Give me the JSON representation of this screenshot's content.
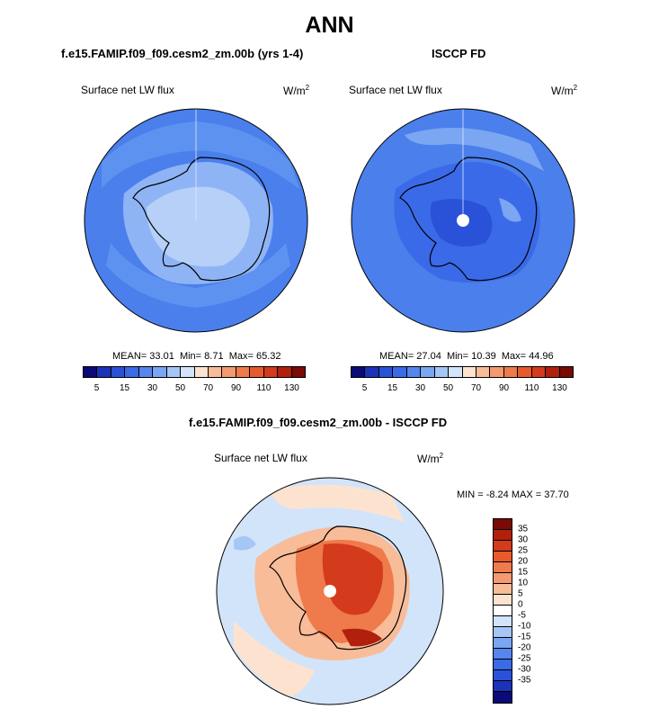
{
  "title": "ANN",
  "panels": {
    "model": {
      "case_title": "f.e15.FAMIP.f09_f09.cesm2_zm.00b (yrs 1-4)",
      "variable": "Surface net LW flux",
      "units": "W/m",
      "units_exp": "2",
      "mean_label": "MEAN=",
      "mean": "33.01",
      "min_label": "Min=",
      "min": "8.71",
      "max_label": "Max=",
      "max": "65.32"
    },
    "obs": {
      "case_title": "ISCCP FD",
      "variable": "Surface net LW flux",
      "units": "W/m",
      "units_exp": "2",
      "mean_label": "MEAN=",
      "mean": "27.04",
      "min_label": "Min=",
      "min": "10.39",
      "max_label": "Max=",
      "max": "44.96"
    },
    "diff": {
      "case_title": "f.e15.FAMIP.f09_f09.cesm2_zm.00b - ISCCP FD",
      "variable": "Surface net LW flux",
      "units": "W/m",
      "units_exp": "2",
      "minmax_text": "MIN = -8.24 MAX = 37.70"
    }
  },
  "colorbar_abs": {
    "colors": [
      "#0a0a78",
      "#1a33b8",
      "#2a52d8",
      "#3a6ae8",
      "#5585ee",
      "#7aa6f2",
      "#a6c6f6",
      "#d2e4fa",
      "#fde3cf",
      "#f8bc98",
      "#f39a70",
      "#ef7a4c",
      "#e85a2c",
      "#d43a1c",
      "#b0200c",
      "#7a0a04"
    ],
    "ticks": [
      "5",
      "15",
      "30",
      "50",
      "70",
      "90",
      "110",
      "130"
    ]
  },
  "colorbar_diff": {
    "colors": [
      "#7a0a04",
      "#b0200c",
      "#d43a1c",
      "#e85a2c",
      "#ef7a4c",
      "#f39a70",
      "#f8bc98",
      "#fde3cf",
      "#ffffff",
      "#d2e4fa",
      "#a6c6f6",
      "#7aa6f2",
      "#5585ee",
      "#3a6ae8",
      "#2a52d8",
      "#1a33b8",
      "#0a0a78"
    ],
    "ticks": [
      "35",
      "30",
      "25",
      "20",
      "15",
      "10",
      "5",
      "0",
      "-5",
      "-10",
      "-15",
      "-20",
      "-25",
      "-30",
      "-35"
    ]
  }
}
